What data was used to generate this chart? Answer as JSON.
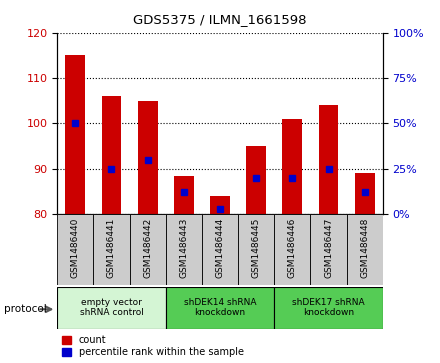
{
  "title": "GDS5375 / ILMN_1661598",
  "samples": [
    "GSM1486440",
    "GSM1486441",
    "GSM1486442",
    "GSM1486443",
    "GSM1486444",
    "GSM1486445",
    "GSM1486446",
    "GSM1486447",
    "GSM1486448"
  ],
  "counts": [
    115,
    106,
    105,
    88.5,
    84,
    95,
    101,
    104,
    89
  ],
  "percentile_ranks": [
    50,
    25,
    30,
    12,
    3,
    20,
    20,
    25,
    12
  ],
  "ylim_left": [
    80,
    120
  ],
  "ylim_right": [
    0,
    100
  ],
  "yticks_left": [
    80,
    90,
    100,
    110,
    120
  ],
  "yticks_right": [
    0,
    25,
    50,
    75,
    100
  ],
  "bar_color": "#cc0000",
  "percentile_color": "#0000cc",
  "protocol_groups": [
    {
      "label": "empty vector\nshRNA control",
      "start": 0,
      "end": 3,
      "color": "#d4f5d4"
    },
    {
      "label": "shDEK14 shRNA\nknockdown",
      "start": 3,
      "end": 6,
      "color": "#55cc55"
    },
    {
      "label": "shDEK17 shRNA\nknockdown",
      "start": 6,
      "end": 9,
      "color": "#55cc55"
    }
  ],
  "legend_count_label": "count",
  "legend_percentile_label": "percentile rank within the sample",
  "protocol_label": "protocol",
  "bar_width": 0.55,
  "xtick_bg": "#cccccc",
  "plot_bg": "#ffffff",
  "fig_bg": "#ffffff"
}
